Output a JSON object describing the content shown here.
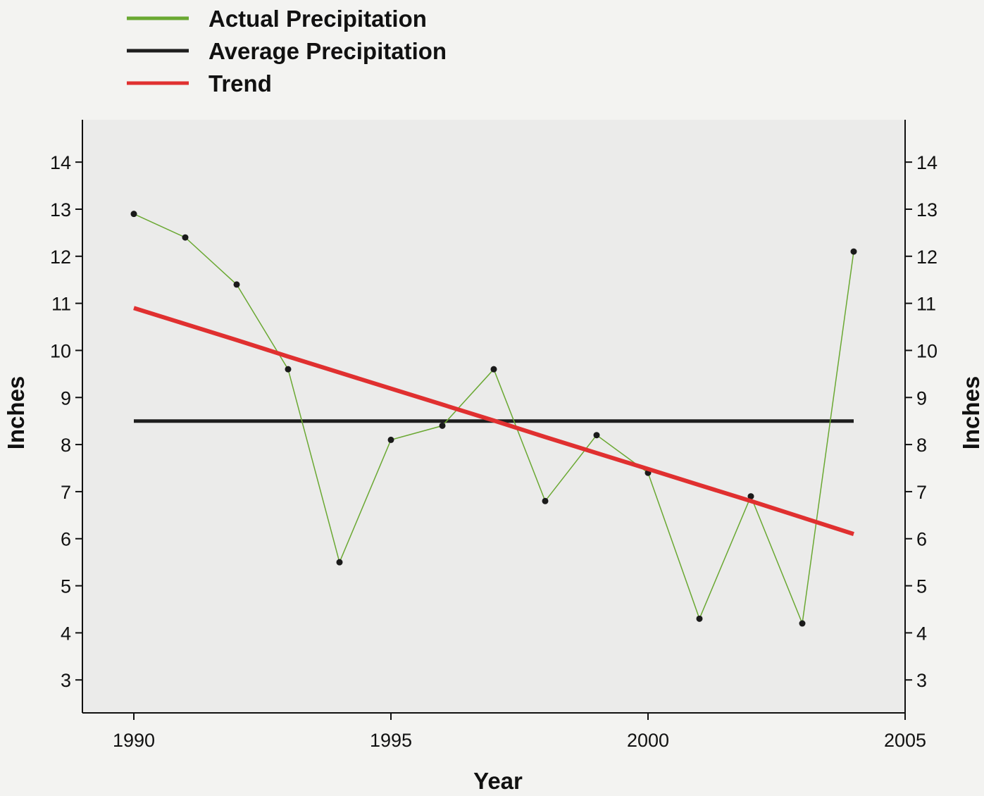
{
  "chart_data": {
    "type": "line",
    "x": [
      1990,
      1991,
      1992,
      1993,
      1994,
      1995,
      1996,
      1997,
      1998,
      1999,
      2000,
      2001,
      2002,
      2003,
      2004
    ],
    "series": [
      {
        "name": "Actual Precipitation",
        "color": "#6aa832",
        "values": [
          12.9,
          12.4,
          11.4,
          9.6,
          5.5,
          8.1,
          8.4,
          9.6,
          6.8,
          8.2,
          7.4,
          4.3,
          6.9,
          4.2,
          12.1
        ]
      },
      {
        "name": "Average Precipitation",
        "color": "#1e1e1e",
        "values": [
          8.5,
          8.5,
          8.5,
          8.5,
          8.5,
          8.5,
          8.5,
          8.5,
          8.5,
          8.5,
          8.5,
          8.5,
          8.5,
          8.5,
          8.5
        ]
      },
      {
        "name": "Trend",
        "color": "#e03030",
        "values": [
          10.9,
          10.56,
          10.22,
          9.87,
          9.53,
          9.19,
          8.85,
          8.51,
          8.16,
          7.82,
          7.48,
          7.14,
          6.8,
          6.45,
          6.1
        ]
      }
    ],
    "xlabel": "Year",
    "ylabel": "Inches",
    "xlim": [
      1989,
      2005
    ],
    "ylim": [
      2.3,
      14.9
    ],
    "x_ticks": [
      "1990",
      "1995",
      "2000",
      "2005"
    ],
    "y_ticks": [
      "3",
      "4",
      "5",
      "6",
      "7",
      "8",
      "9",
      "10",
      "11",
      "12",
      "13",
      "14"
    ],
    "legend_position": "top-left, above plot area",
    "grid": false,
    "secondary_y_axis": true,
    "plot_background": "#ebebea"
  }
}
